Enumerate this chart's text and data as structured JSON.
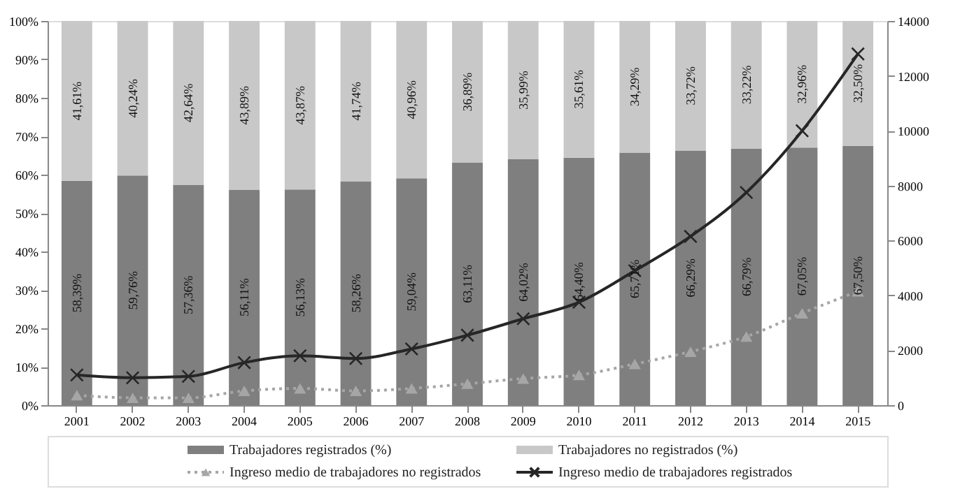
{
  "chart_data": {
    "type": "bar",
    "stacked": true,
    "legend": "bottom",
    "grid": false,
    "categories": [
      "2001",
      "2002",
      "2003",
      "2004",
      "2005",
      "2006",
      "2007",
      "2008",
      "2009",
      "2010",
      "2011",
      "2012",
      "2013",
      "2014",
      "2015"
    ],
    "ylim": [
      0,
      100
    ],
    "yticks": [
      {
        "value": 0,
        "label": "0%"
      },
      {
        "value": 10,
        "label": "10%"
      },
      {
        "value": 20,
        "label": "20%"
      },
      {
        "value": 30,
        "label": "30%"
      },
      {
        "value": 40,
        "label": "40%"
      },
      {
        "value": 50,
        "label": "50%"
      },
      {
        "value": 60,
        "label": "60%"
      },
      {
        "value": 70,
        "label": "70%"
      },
      {
        "value": 80,
        "label": "80%"
      },
      {
        "value": 90,
        "label": "90%"
      },
      {
        "value": 100,
        "label": "100%"
      }
    ],
    "y2lim": [
      0,
      14000
    ],
    "y2ticks": [
      0,
      2000,
      4000,
      6000,
      8000,
      10000,
      12000,
      14000
    ],
    "series": [
      {
        "name": "Trabajadores registrados (%)",
        "type": "bar",
        "color": "#7f7f7f",
        "values": [
          58.39,
          59.76,
          57.36,
          56.11,
          56.13,
          58.26,
          59.04,
          63.11,
          64.02,
          64.4,
          65.71,
          66.29,
          66.79,
          67.05,
          67.5
        ],
        "value_labels": [
          "58,39%",
          "59,76%",
          "57,36%",
          "56,11%",
          "56,13%",
          "58,26%",
          "59,04%",
          "63,11%",
          "64,02%",
          "64,40%",
          "65,71%",
          "66,29%",
          "66,79%",
          "67,05%",
          "67,50%"
        ]
      },
      {
        "name": "Trabajadores no registrados (%)",
        "type": "bar",
        "color": "#c8c8c8",
        "values": [
          41.61,
          40.24,
          42.64,
          43.89,
          43.87,
          41.74,
          40.96,
          36.89,
          35.99,
          35.61,
          34.29,
          33.72,
          33.22,
          32.96,
          32.5
        ],
        "value_labels": [
          "41,61%",
          "40,24%",
          "42,64%",
          "43,89%",
          "43,87%",
          "41,74%",
          "40,96%",
          "36,89%",
          "35,99%",
          "35,61%",
          "34,29%",
          "33,72%",
          "33,22%",
          "32,96%",
          "32,50%"
        ]
      },
      {
        "name": "Ingreso medio de trabajadores no registrados",
        "type": "line",
        "axis": "y2",
        "color": "#a6a6a6",
        "marker": "triangle",
        "line_style": "dotted",
        "values": [
          360,
          270,
          270,
          520,
          610,
          520,
          610,
          780,
          970,
          1100,
          1500,
          1950,
          2500,
          3350,
          4150
        ]
      },
      {
        "name": "Ingreso medio de trabajadores registrados",
        "type": "line",
        "axis": "y2",
        "color": "#262626",
        "marker": "cross",
        "line_style": "solid",
        "values": [
          1100,
          1000,
          1050,
          1550,
          1800,
          1700,
          2050,
          2550,
          3150,
          3750,
          4900,
          6150,
          7750,
          10000,
          12800
        ]
      }
    ]
  }
}
